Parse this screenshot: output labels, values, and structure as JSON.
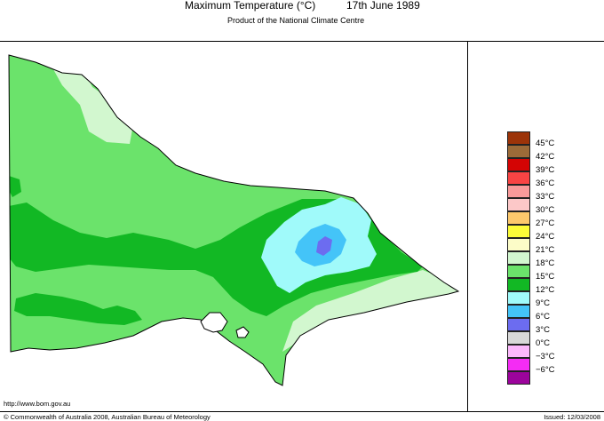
{
  "header": {
    "title": "Maximum Temperature (°C)",
    "date": "17th June 1989",
    "subtitle": "Product of the National Climate Centre"
  },
  "map": {
    "region_icon": "victoria-map-icon",
    "colors": {
      "light": "#d2f7cf",
      "green_18": "#6be36b",
      "green_15": "#12b824",
      "cyan_12": "#a0fafa",
      "blue_9": "#44c4f8",
      "violet_6": "#6c6cf0"
    }
  },
  "legend": {
    "items": [
      {
        "label": "45°C",
        "color": "#9c3409"
      },
      {
        "label": "42°C",
        "color": "#9c6b38"
      },
      {
        "label": "39°C",
        "color": "#d40404"
      },
      {
        "label": "36°C",
        "color": "#f84444"
      },
      {
        "label": "33°C",
        "color": "#f89a9a"
      },
      {
        "label": "30°C",
        "color": "#fcc8c8"
      },
      {
        "label": "27°C",
        "color": "#fcc86c"
      },
      {
        "label": "24°C",
        "color": "#fcfc38"
      },
      {
        "label": "21°C",
        "color": "#fcfcc8"
      },
      {
        "label": "18°C",
        "color": "#d2f7cf"
      },
      {
        "label": "15°C",
        "color": "#6be36b"
      },
      {
        "label": "12°C",
        "color": "#12b824"
      },
      {
        "label": "9°C",
        "color": "#a0fafa"
      },
      {
        "label": "6°C",
        "color": "#44c4f8"
      },
      {
        "label": "3°C",
        "color": "#6c6cf0"
      },
      {
        "label": "0°C",
        "color": "#d8d8d8"
      },
      {
        "label": "−3°C",
        "color": "#fcb8fc"
      },
      {
        "label": "−6°C",
        "color": "#f42cf4"
      },
      {
        "label": "",
        "color": "#9c049c"
      }
    ]
  },
  "footer": {
    "url": "http://www.bom.gov.au",
    "copyright": "© Commonwealth of Australia 2008, Australian Bureau of Meteorology",
    "issued": "Issued: 12/03/2008"
  }
}
